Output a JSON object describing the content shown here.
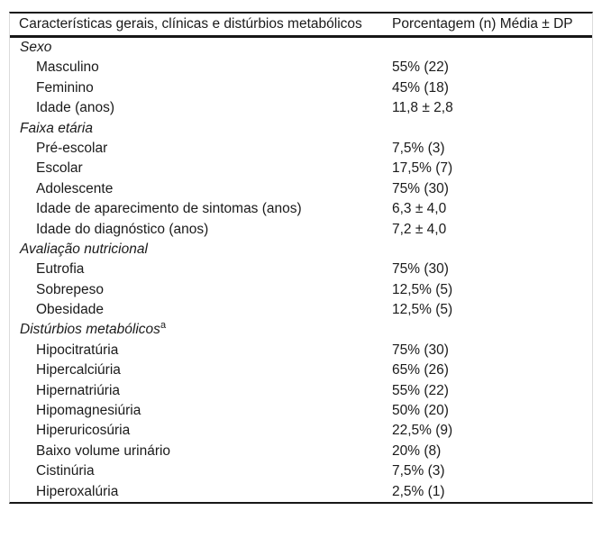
{
  "table": {
    "header": {
      "characteristics_col": "Características gerais, clínicas e distúrbios metabólicos",
      "values_col": "Porcentagem (n) Média ± DP"
    },
    "sections": [
      {
        "label": "Sexo",
        "rows": [
          {
            "label": "Masculino",
            "value": "55% (22)"
          },
          {
            "label": "Feminino",
            "value": "45% (18)"
          },
          {
            "label": "Idade (anos)",
            "value": "11,8 ± 2,8"
          }
        ]
      },
      {
        "label": "Faixa etária",
        "rows": [
          {
            "label": "Pré-escolar",
            "value": "7,5% (3)"
          },
          {
            "label": "Escolar",
            "value": "17,5% (7)"
          },
          {
            "label": "Adolescente",
            "value": "75% (30)"
          },
          {
            "label": "Idade de aparecimento de sintomas (anos)",
            "value": "6,3 ± 4,0"
          },
          {
            "label": "Idade do diagnóstico (anos)",
            "value": "7,2 ± 4,0"
          }
        ]
      },
      {
        "label": "Avaliação nutricional",
        "rows": [
          {
            "label": "Eutrofia",
            "value": "75% (30)"
          },
          {
            "label": "Sobrepeso",
            "value": "12,5% (5)"
          },
          {
            "label": "Obesidade",
            "value": "12,5% (5)"
          }
        ]
      },
      {
        "label": "Distúrbios metabólicos",
        "superscript": "a",
        "rows": [
          {
            "label": "Hipocitratúria",
            "value": "75% (30)"
          },
          {
            "label": "Hipercalciúria",
            "value": "65% (26)"
          },
          {
            "label": "Hipernatriúria",
            "value": "55% (22)"
          },
          {
            "label": "Hipomagnesiúria",
            "value": "50% (20)"
          },
          {
            "label": "Hiperuricosúria",
            "value": "22,5% (9)"
          },
          {
            "label": "Baixo volume urinário",
            "value": "20% (8)"
          },
          {
            "label": "Cistinúria",
            "value": "7,5% (3)"
          },
          {
            "label": "Hiperoxalúria",
            "value": "2,5% (1)"
          }
        ]
      }
    ]
  }
}
